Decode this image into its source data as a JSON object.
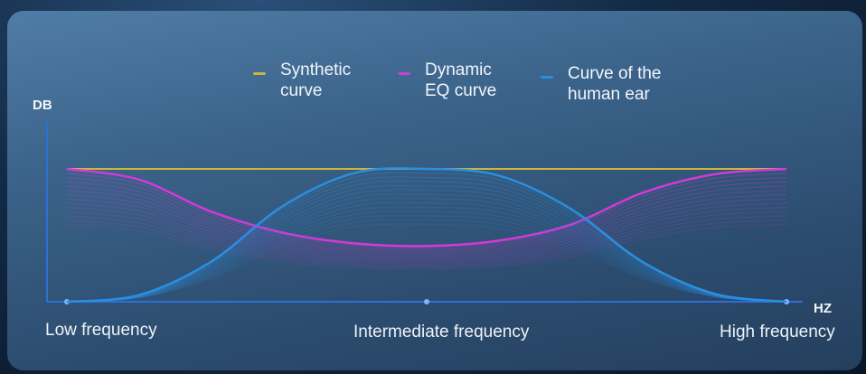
{
  "colors": {
    "synthetic": "#c9b63a",
    "dynamic_eq": "#d23ad6",
    "human_ear": "#2a8fe0",
    "axis": "#2f6fd6"
  },
  "chart_data": {
    "type": "line",
    "xlabel": "HZ",
    "ylabel": "DB",
    "x_tick_labels": [
      "Low frequency",
      "Intermediate frequency",
      "High frequency"
    ],
    "x": [
      0,
      10,
      20,
      30,
      40,
      50,
      60,
      70,
      80,
      90,
      100
    ],
    "ylim": [
      0,
      100
    ],
    "grid": false,
    "legend_position": "top",
    "series": [
      {
        "key": "synthetic",
        "name": "Synthetic curve",
        "lines": [
          "Synthetic",
          "curve"
        ],
        "values": [
          100,
          100,
          100,
          100,
          100,
          100,
          100,
          100,
          100,
          100,
          100
        ]
      },
      {
        "key": "dynamic_eq",
        "name": "Dynamic EQ curve",
        "lines": [
          "Dynamic",
          "EQ curve"
        ],
        "values": [
          100,
          92,
          68,
          52,
          44,
          42,
          46,
          58,
          82,
          96,
          100
        ]
      },
      {
        "key": "human_ear",
        "name": "Curve of the human ear",
        "lines": [
          "Curve of the",
          "human ear"
        ],
        "values": [
          0,
          5,
          30,
          72,
          97,
          100,
          95,
          70,
          30,
          6,
          0
        ]
      }
    ]
  }
}
